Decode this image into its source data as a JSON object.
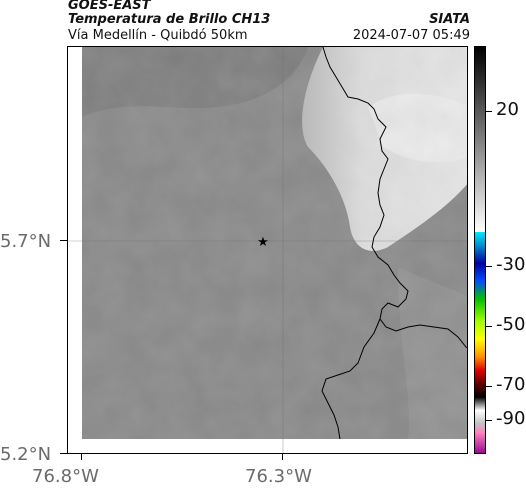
{
  "header": {
    "satellite": "GOES-EAST",
    "product": "Temperatura de Brillo CH13",
    "region": "Vía Medellín - Quibdó 50km",
    "agency": "SIATA",
    "timestamp": "2024-07-07 05:49"
  },
  "axes": {
    "lat_ticks": [
      "5.7°N",
      "5.2°N"
    ],
    "lon_ticks": [
      "76.8°W",
      "76.3°W"
    ],
    "gridlines": true
  },
  "map": {
    "marker_icon": "star-icon",
    "colors": {
      "cloud_bright": "#e6e6e6",
      "base_gray": "#878787",
      "border_line": "#000000"
    }
  },
  "colorbar": {
    "labels": [
      "20",
      "-30",
      "-50",
      "-70",
      "-90"
    ]
  }
}
